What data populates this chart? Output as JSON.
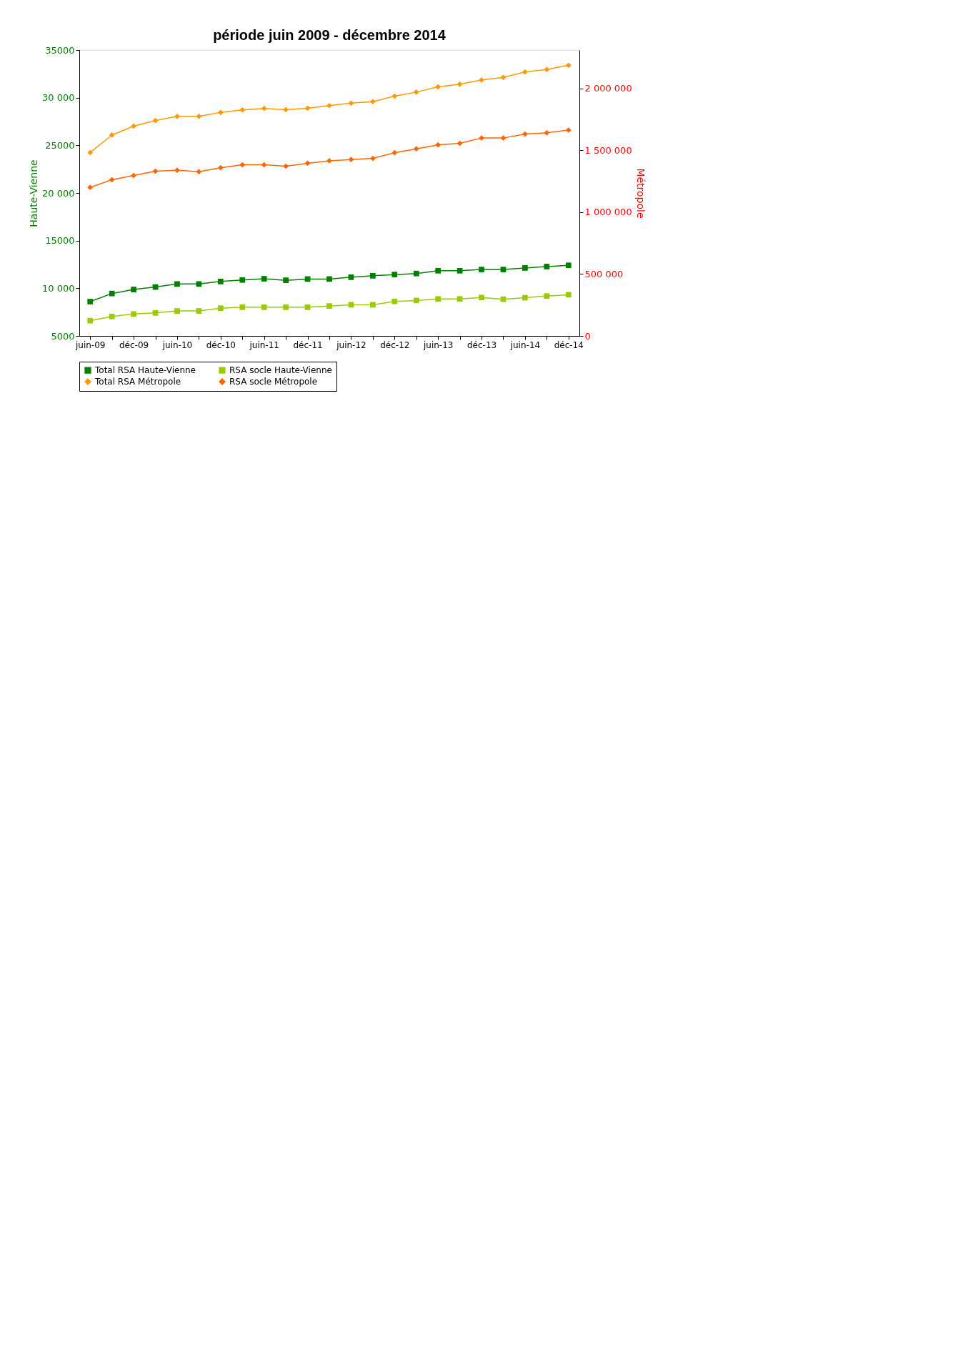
{
  "chart_data": {
    "type": "line",
    "title": "période juin 2009 - décembre 2014",
    "categories": [
      "juin-09",
      null,
      "déc-09",
      null,
      "juin-10",
      null,
      "déc-10",
      null,
      "juin-11",
      null,
      "déc-11",
      null,
      "juin-12",
      null,
      "déc-12",
      null,
      "juin-13",
      null,
      "déc-13",
      null,
      "juin-14",
      null,
      "déc-14"
    ],
    "ylabel": "Haute-Vienne",
    "y2label": "Métropole",
    "ylim": [
      5000,
      35000
    ],
    "yticks": [
      5000,
      {
        "value": 10000,
        "label": "10 000"
      },
      15000,
      {
        "value": 20000,
        "label": "20 000"
      },
      25000,
      {
        "value": 30000,
        "label": "30 000"
      },
      35000
    ],
    "y2lim": [
      0,
      2310000
    ],
    "y2ticks": [
      0,
      {
        "value": 500000,
        "label": "500 000"
      },
      {
        "value": 1000000,
        "label": "1 000 000"
      },
      {
        "value": 1500000,
        "label": "1 500 000"
      },
      {
        "value": 2000000,
        "label": "2 000 000"
      }
    ],
    "series": [
      {
        "name": "Total RSA Haute-Vienne",
        "color": "#008000",
        "marker": "square",
        "values": [
          8600,
          9450,
          9870,
          10130,
          10450,
          10450,
          10710,
          10870,
          11000,
          10840,
          10970,
          10970,
          11160,
          11310,
          11440,
          11550,
          11840,
          11840,
          11970,
          11970,
          12130,
          12280,
          12410
        ]
      },
      {
        "name": "RSA socle Haute-Vienne",
        "color": "#99cc00",
        "marker": "square",
        "values": [
          6600,
          7040,
          7300,
          7410,
          7620,
          7620,
          7910,
          8010,
          8010,
          8010,
          8010,
          8140,
          8270,
          8270,
          8620,
          8720,
          8880,
          8880,
          9030,
          8850,
          9010,
          9190,
          9320
        ]
      },
      {
        "name": "Total RSA Métropole",
        "color": "#ff9900",
        "marker": "diamond",
        "axis": "y2",
        "values": [
          1482000,
          1623000,
          1695000,
          1740000,
          1774000,
          1774000,
          1806000,
          1826000,
          1838000,
          1828000,
          1840000,
          1861000,
          1881000,
          1893000,
          1937000,
          1970000,
          2012000,
          2034000,
          2068000,
          2089000,
          2133000,
          2153000,
          2187000
        ]
      },
      {
        "name": "RSA socle Métropole",
        "color": "#ff6600",
        "marker": "diamond",
        "axis": "y2",
        "values": [
          1200000,
          1262000,
          1296000,
          1331000,
          1339000,
          1327000,
          1359000,
          1383000,
          1383000,
          1371000,
          1395000,
          1415000,
          1425000,
          1435000,
          1480000,
          1512000,
          1544000,
          1556000,
          1599000,
          1599000,
          1631000,
          1641000,
          1663000
        ]
      }
    ],
    "legend": "bottom",
    "line_style": "solid"
  }
}
